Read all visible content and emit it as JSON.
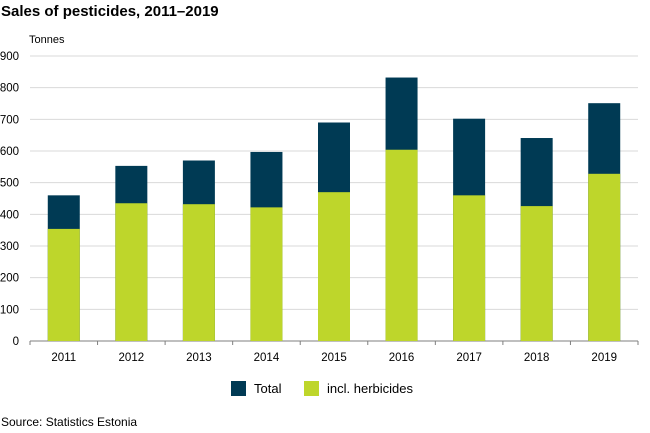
{
  "chart_data": {
    "type": "bar",
    "title": "Sales of pesticides, 2011–2019",
    "ylabel": "Tonnes",
    "xlabel": "",
    "source": "Source: Statistics Estonia",
    "categories": [
      "2011",
      "2012",
      "2013",
      "2014",
      "2015",
      "2016",
      "2017",
      "2018",
      "2019"
    ],
    "series": [
      {
        "name": "Total",
        "color": "#003a54",
        "values": [
          460,
          553,
          570,
          597,
          690,
          832,
          702,
          641,
          751
        ]
      },
      {
        "name": "incl. herbicides",
        "color": "#bed62b",
        "values": [
          354,
          435,
          432,
          422,
          470,
          604,
          460,
          426,
          528
        ]
      }
    ],
    "ylim": [
      0,
      900
    ],
    "yticks": [
      0,
      100,
      200,
      300,
      400,
      500,
      600,
      700,
      800,
      900
    ],
    "grid": true,
    "legend": "bottom"
  }
}
